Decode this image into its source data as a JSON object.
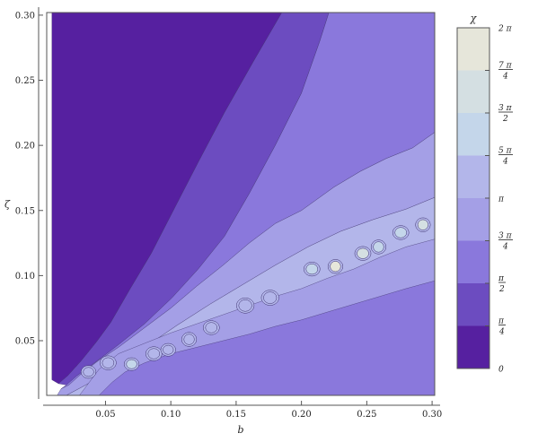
{
  "chart_data": {
    "type": "heatmap",
    "subtype": "contour",
    "title": "",
    "xlabel": "b",
    "ylabel": "ζ",
    "xlim": [
      0.005,
      0.302
    ],
    "ylim": [
      0.008,
      0.302
    ],
    "xticks": [
      {
        "value": 0.05,
        "label": "0.05"
      },
      {
        "value": 0.1,
        "label": "0.10"
      },
      {
        "value": 0.15,
        "label": "0.15"
      },
      {
        "value": 0.2,
        "label": "0.20"
      },
      {
        "value": 0.25,
        "label": "0.25"
      },
      {
        "value": 0.3,
        "label": "0.30"
      }
    ],
    "yticks": [
      {
        "value": 0.05,
        "label": "0.05"
      },
      {
        "value": 0.1,
        "label": "0.10"
      },
      {
        "value": 0.15,
        "label": "0.15"
      },
      {
        "value": 0.2,
        "label": "0.20"
      },
      {
        "value": 0.25,
        "label": "0.25"
      },
      {
        "value": 0.3,
        "label": "0.30"
      }
    ],
    "grid": false,
    "legend_placement": "right",
    "colorbar": {
      "title": "χ",
      "range": [
        0,
        6.2832
      ],
      "band_colors": [
        "#5620a0",
        "#6c4cc0",
        "#8a78dc",
        "#a49fe6",
        "#b3b6ea",
        "#c4d6ea",
        "#d4dfe2",
        "#e6e6da"
      ],
      "labels": [
        {
          "value": 0,
          "num": "0",
          "den": ""
        },
        {
          "value": 0.7854,
          "num": "π",
          "den": "4"
        },
        {
          "value": 1.5708,
          "num": "π",
          "den": "2"
        },
        {
          "value": 2.3562,
          "num": "3 π",
          "den": "4"
        },
        {
          "value": 3.1416,
          "num": "π",
          "den": ""
        },
        {
          "value": 3.927,
          "num": "5 π",
          "den": "4"
        },
        {
          "value": 4.7124,
          "num": "3 π",
          "den": "2"
        },
        {
          "value": 5.4978,
          "num": "7 π",
          "den": "4"
        },
        {
          "value": 6.2832,
          "num": "2 π",
          "den": ""
        }
      ]
    },
    "regions": [
      {
        "level": 0,
        "color": "#5620a0",
        "points": [
          [
            0.009,
            0.302
          ],
          [
            0.185,
            0.302
          ],
          [
            0.163,
            0.264
          ],
          [
            0.141,
            0.225
          ],
          [
            0.121,
            0.187
          ],
          [
            0.103,
            0.152
          ],
          [
            0.085,
            0.117
          ],
          [
            0.069,
            0.09
          ],
          [
            0.054,
            0.064
          ],
          [
            0.043,
            0.049
          ],
          [
            0.031,
            0.034
          ],
          [
            0.021,
            0.023
          ],
          [
            0.014,
            0.017
          ],
          [
            0.009,
            0.02
          ]
        ]
      },
      {
        "level": 1,
        "color": "#6c4cc0",
        "points": [
          [
            0.185,
            0.302
          ],
          [
            0.221,
            0.302
          ],
          [
            0.214,
            0.28
          ],
          [
            0.2,
            0.24
          ],
          [
            0.18,
            0.2
          ],
          [
            0.16,
            0.163
          ],
          [
            0.141,
            0.13
          ],
          [
            0.121,
            0.105
          ],
          [
            0.101,
            0.083
          ],
          [
            0.08,
            0.063
          ],
          [
            0.06,
            0.047
          ],
          [
            0.043,
            0.034
          ],
          [
            0.028,
            0.023
          ],
          [
            0.02,
            0.016
          ],
          [
            0.014,
            0.017
          ],
          [
            0.021,
            0.023
          ],
          [
            0.031,
            0.034
          ],
          [
            0.043,
            0.049
          ],
          [
            0.054,
            0.064
          ],
          [
            0.069,
            0.09
          ],
          [
            0.085,
            0.117
          ],
          [
            0.103,
            0.152
          ],
          [
            0.121,
            0.187
          ],
          [
            0.141,
            0.225
          ],
          [
            0.163,
            0.264
          ]
        ]
      },
      {
        "level": 2,
        "color": "#8a78dc",
        "points": [
          [
            0.221,
            0.302
          ],
          [
            0.302,
            0.302
          ],
          [
            0.302,
            0.21
          ],
          [
            0.285,
            0.198
          ],
          [
            0.265,
            0.19
          ],
          [
            0.245,
            0.18
          ],
          [
            0.225,
            0.168
          ],
          [
            0.2,
            0.15
          ],
          [
            0.18,
            0.14
          ],
          [
            0.16,
            0.125
          ],
          [
            0.14,
            0.108
          ],
          [
            0.12,
            0.092
          ],
          [
            0.1,
            0.075
          ],
          [
            0.08,
            0.06
          ],
          [
            0.06,
            0.045
          ],
          [
            0.045,
            0.035
          ],
          [
            0.032,
            0.025
          ],
          [
            0.022,
            0.016
          ],
          [
            0.016,
            0.013
          ],
          [
            0.02,
            0.016
          ],
          [
            0.028,
            0.023
          ],
          [
            0.043,
            0.034
          ],
          [
            0.06,
            0.047
          ],
          [
            0.08,
            0.063
          ],
          [
            0.101,
            0.083
          ],
          [
            0.121,
            0.105
          ],
          [
            0.141,
            0.13
          ],
          [
            0.16,
            0.163
          ],
          [
            0.18,
            0.2
          ],
          [
            0.2,
            0.24
          ],
          [
            0.214,
            0.28
          ]
        ]
      },
      {
        "level": 3,
        "color": "#a49fe6",
        "points": [
          [
            0.302,
            0.16
          ],
          [
            0.302,
            0.21
          ],
          [
            0.285,
            0.198
          ],
          [
            0.265,
            0.19
          ],
          [
            0.245,
            0.18
          ],
          [
            0.225,
            0.168
          ],
          [
            0.2,
            0.15
          ],
          [
            0.18,
            0.14
          ],
          [
            0.16,
            0.125
          ],
          [
            0.14,
            0.108
          ],
          [
            0.12,
            0.092
          ],
          [
            0.1,
            0.075
          ],
          [
            0.08,
            0.06
          ],
          [
            0.06,
            0.045
          ],
          [
            0.045,
            0.035
          ],
          [
            0.032,
            0.025
          ],
          [
            0.022,
            0.016
          ],
          [
            0.016,
            0.013
          ],
          [
            0.013,
            0.008
          ],
          [
            0.02,
            0.008
          ],
          [
            0.035,
            0.016
          ],
          [
            0.055,
            0.028
          ],
          [
            0.08,
            0.045
          ],
          [
            0.105,
            0.062
          ],
          [
            0.13,
            0.078
          ],
          [
            0.155,
            0.093
          ],
          [
            0.18,
            0.108
          ],
          [
            0.205,
            0.122
          ],
          [
            0.23,
            0.134
          ],
          [
            0.255,
            0.143
          ],
          [
            0.28,
            0.151
          ]
        ]
      },
      {
        "level": 4,
        "color": "#b3b6ea",
        "points": [
          [
            0.013,
            0.008
          ],
          [
            0.302,
            0.008
          ],
          [
            0.302,
            0.16
          ],
          [
            0.28,
            0.151
          ],
          [
            0.255,
            0.143
          ],
          [
            0.23,
            0.134
          ],
          [
            0.205,
            0.122
          ],
          [
            0.18,
            0.108
          ],
          [
            0.155,
            0.093
          ],
          [
            0.13,
            0.078
          ],
          [
            0.105,
            0.062
          ],
          [
            0.08,
            0.045
          ],
          [
            0.055,
            0.028
          ],
          [
            0.035,
            0.016
          ],
          [
            0.02,
            0.008
          ]
        ]
      },
      {
        "level": 3,
        "color": "#a49fe6",
        "points": [
          [
            0.03,
            0.008
          ],
          [
            0.302,
            0.008
          ],
          [
            0.302,
            0.128
          ],
          [
            0.28,
            0.122
          ],
          [
            0.26,
            0.114
          ],
          [
            0.24,
            0.105
          ],
          [
            0.22,
            0.098
          ],
          [
            0.2,
            0.09
          ],
          [
            0.18,
            0.084
          ],
          [
            0.16,
            0.077
          ],
          [
            0.14,
            0.07
          ],
          [
            0.12,
            0.063
          ],
          [
            0.1,
            0.056
          ],
          [
            0.08,
            0.048
          ],
          [
            0.06,
            0.04
          ],
          [
            0.045,
            0.028
          ]
        ]
      },
      {
        "level": 2,
        "color": "#8a78dc",
        "points": [
          [
            0.045,
            0.008
          ],
          [
            0.302,
            0.008
          ],
          [
            0.302,
            0.096
          ],
          [
            0.28,
            0.09
          ],
          [
            0.26,
            0.084
          ],
          [
            0.24,
            0.078
          ],
          [
            0.22,
            0.072
          ],
          [
            0.2,
            0.066
          ],
          [
            0.18,
            0.061
          ],
          [
            0.16,
            0.055
          ],
          [
            0.14,
            0.05
          ],
          [
            0.12,
            0.045
          ],
          [
            0.1,
            0.04
          ],
          [
            0.08,
            0.033
          ],
          [
            0.065,
            0.026
          ],
          [
            0.055,
            0.018
          ]
        ]
      }
    ],
    "islands": [
      {
        "level": 4,
        "color": "#b3b6ea",
        "center": [
          0.037,
          0.026
        ],
        "r": [
          0.004,
          0.0035
        ]
      },
      {
        "level": 4,
        "color": "#b3b6ea",
        "center": [
          0.052,
          0.033
        ],
        "r": [
          0.0045,
          0.004
        ]
      },
      {
        "level": 5,
        "color": "#c4d6ea",
        "center": [
          0.07,
          0.032
        ],
        "r": [
          0.004,
          0.0035
        ]
      },
      {
        "level": 4,
        "color": "#b3b6ea",
        "center": [
          0.087,
          0.04
        ],
        "r": [
          0.0045,
          0.004
        ]
      },
      {
        "level": 4,
        "color": "#b3b6ea",
        "center": [
          0.098,
          0.043
        ],
        "r": [
          0.004,
          0.0035
        ]
      },
      {
        "level": 4,
        "color": "#b3b6ea",
        "center": [
          0.114,
          0.051
        ],
        "r": [
          0.004,
          0.004
        ]
      },
      {
        "level": 4,
        "color": "#b3b6ea",
        "center": [
          0.131,
          0.06
        ],
        "r": [
          0.0045,
          0.004
        ]
      },
      {
        "level": 4,
        "color": "#b3b6ea",
        "center": [
          0.157,
          0.077
        ],
        "r": [
          0.005,
          0.0045
        ]
      },
      {
        "level": 4,
        "color": "#b3b6ea",
        "center": [
          0.176,
          0.083
        ],
        "r": [
          0.005,
          0.0045
        ]
      },
      {
        "level": 5,
        "color": "#c4d6ea",
        "center": [
          0.208,
          0.105
        ],
        "r": [
          0.0045,
          0.004
        ]
      },
      {
        "level": 7,
        "color": "#e6e6da",
        "center": [
          0.226,
          0.107
        ],
        "r": [
          0.004,
          0.004
        ]
      },
      {
        "level": 6,
        "color": "#d4dfe2",
        "center": [
          0.247,
          0.117
        ],
        "r": [
          0.0045,
          0.004
        ]
      },
      {
        "level": 5,
        "color": "#c4d6ea",
        "center": [
          0.259,
          0.122
        ],
        "r": [
          0.004,
          0.004
        ]
      },
      {
        "level": 5,
        "color": "#c4d6ea",
        "center": [
          0.276,
          0.133
        ],
        "r": [
          0.0045,
          0.004
        ]
      },
      {
        "level": 6,
        "color": "#d4dfe2",
        "center": [
          0.293,
          0.139
        ],
        "r": [
          0.004,
          0.004
        ]
      }
    ]
  }
}
